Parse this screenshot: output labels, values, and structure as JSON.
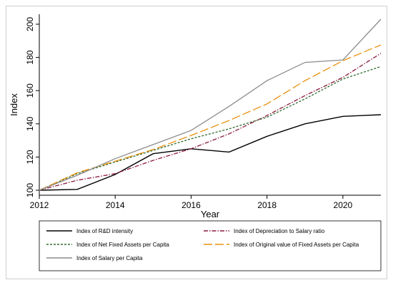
{
  "chart_data": {
    "type": "line",
    "xlabel": "Year",
    "ylabel": "Index",
    "xlim": [
      2012,
      2021
    ],
    "ylim": [
      97,
      206
    ],
    "x_ticks": [
      2012,
      2014,
      2016,
      2018,
      2020
    ],
    "y_ticks": [
      100,
      120,
      140,
      160,
      180,
      200
    ],
    "x": [
      2012,
      2013,
      2014,
      2015,
      2016,
      2017,
      2018,
      2019,
      2020,
      2021
    ],
    "legend_position": "bottom",
    "series": [
      {
        "name": "Index of R&D intensity",
        "color": "#000000",
        "dash": "solid",
        "values": [
          100,
          100.5,
          109.5,
          122,
          125,
          123,
          132.5,
          140,
          144.5,
          145.5
        ]
      },
      {
        "name": "Index of Depreciation to Salary ratio",
        "color": "#8b1a3b",
        "dash": "dashdot",
        "values": [
          100,
          106,
          110,
          118,
          125,
          134,
          145,
          157,
          168,
          182.5
        ]
      },
      {
        "name": "Index of  Net Fixed Assets per Capita",
        "color": "#2e6b2e",
        "dash": "dotted",
        "values": [
          100,
          110,
          117,
          124,
          131,
          137,
          144,
          155,
          167,
          174.5
        ]
      },
      {
        "name": "Index of Original value of Fixed Assets per Capita",
        "color": "#e8900a",
        "dash": "longdash",
        "values": [
          100,
          110.5,
          117.5,
          124.5,
          133,
          142,
          152,
          166,
          178,
          187.5
        ]
      },
      {
        "name": "Index of Salary per Capita",
        "color": "#8c8c8c",
        "dash": "solid",
        "values": [
          100,
          109,
          119,
          127.5,
          136,
          150.5,
          166,
          177,
          178.5,
          203
        ]
      }
    ]
  }
}
